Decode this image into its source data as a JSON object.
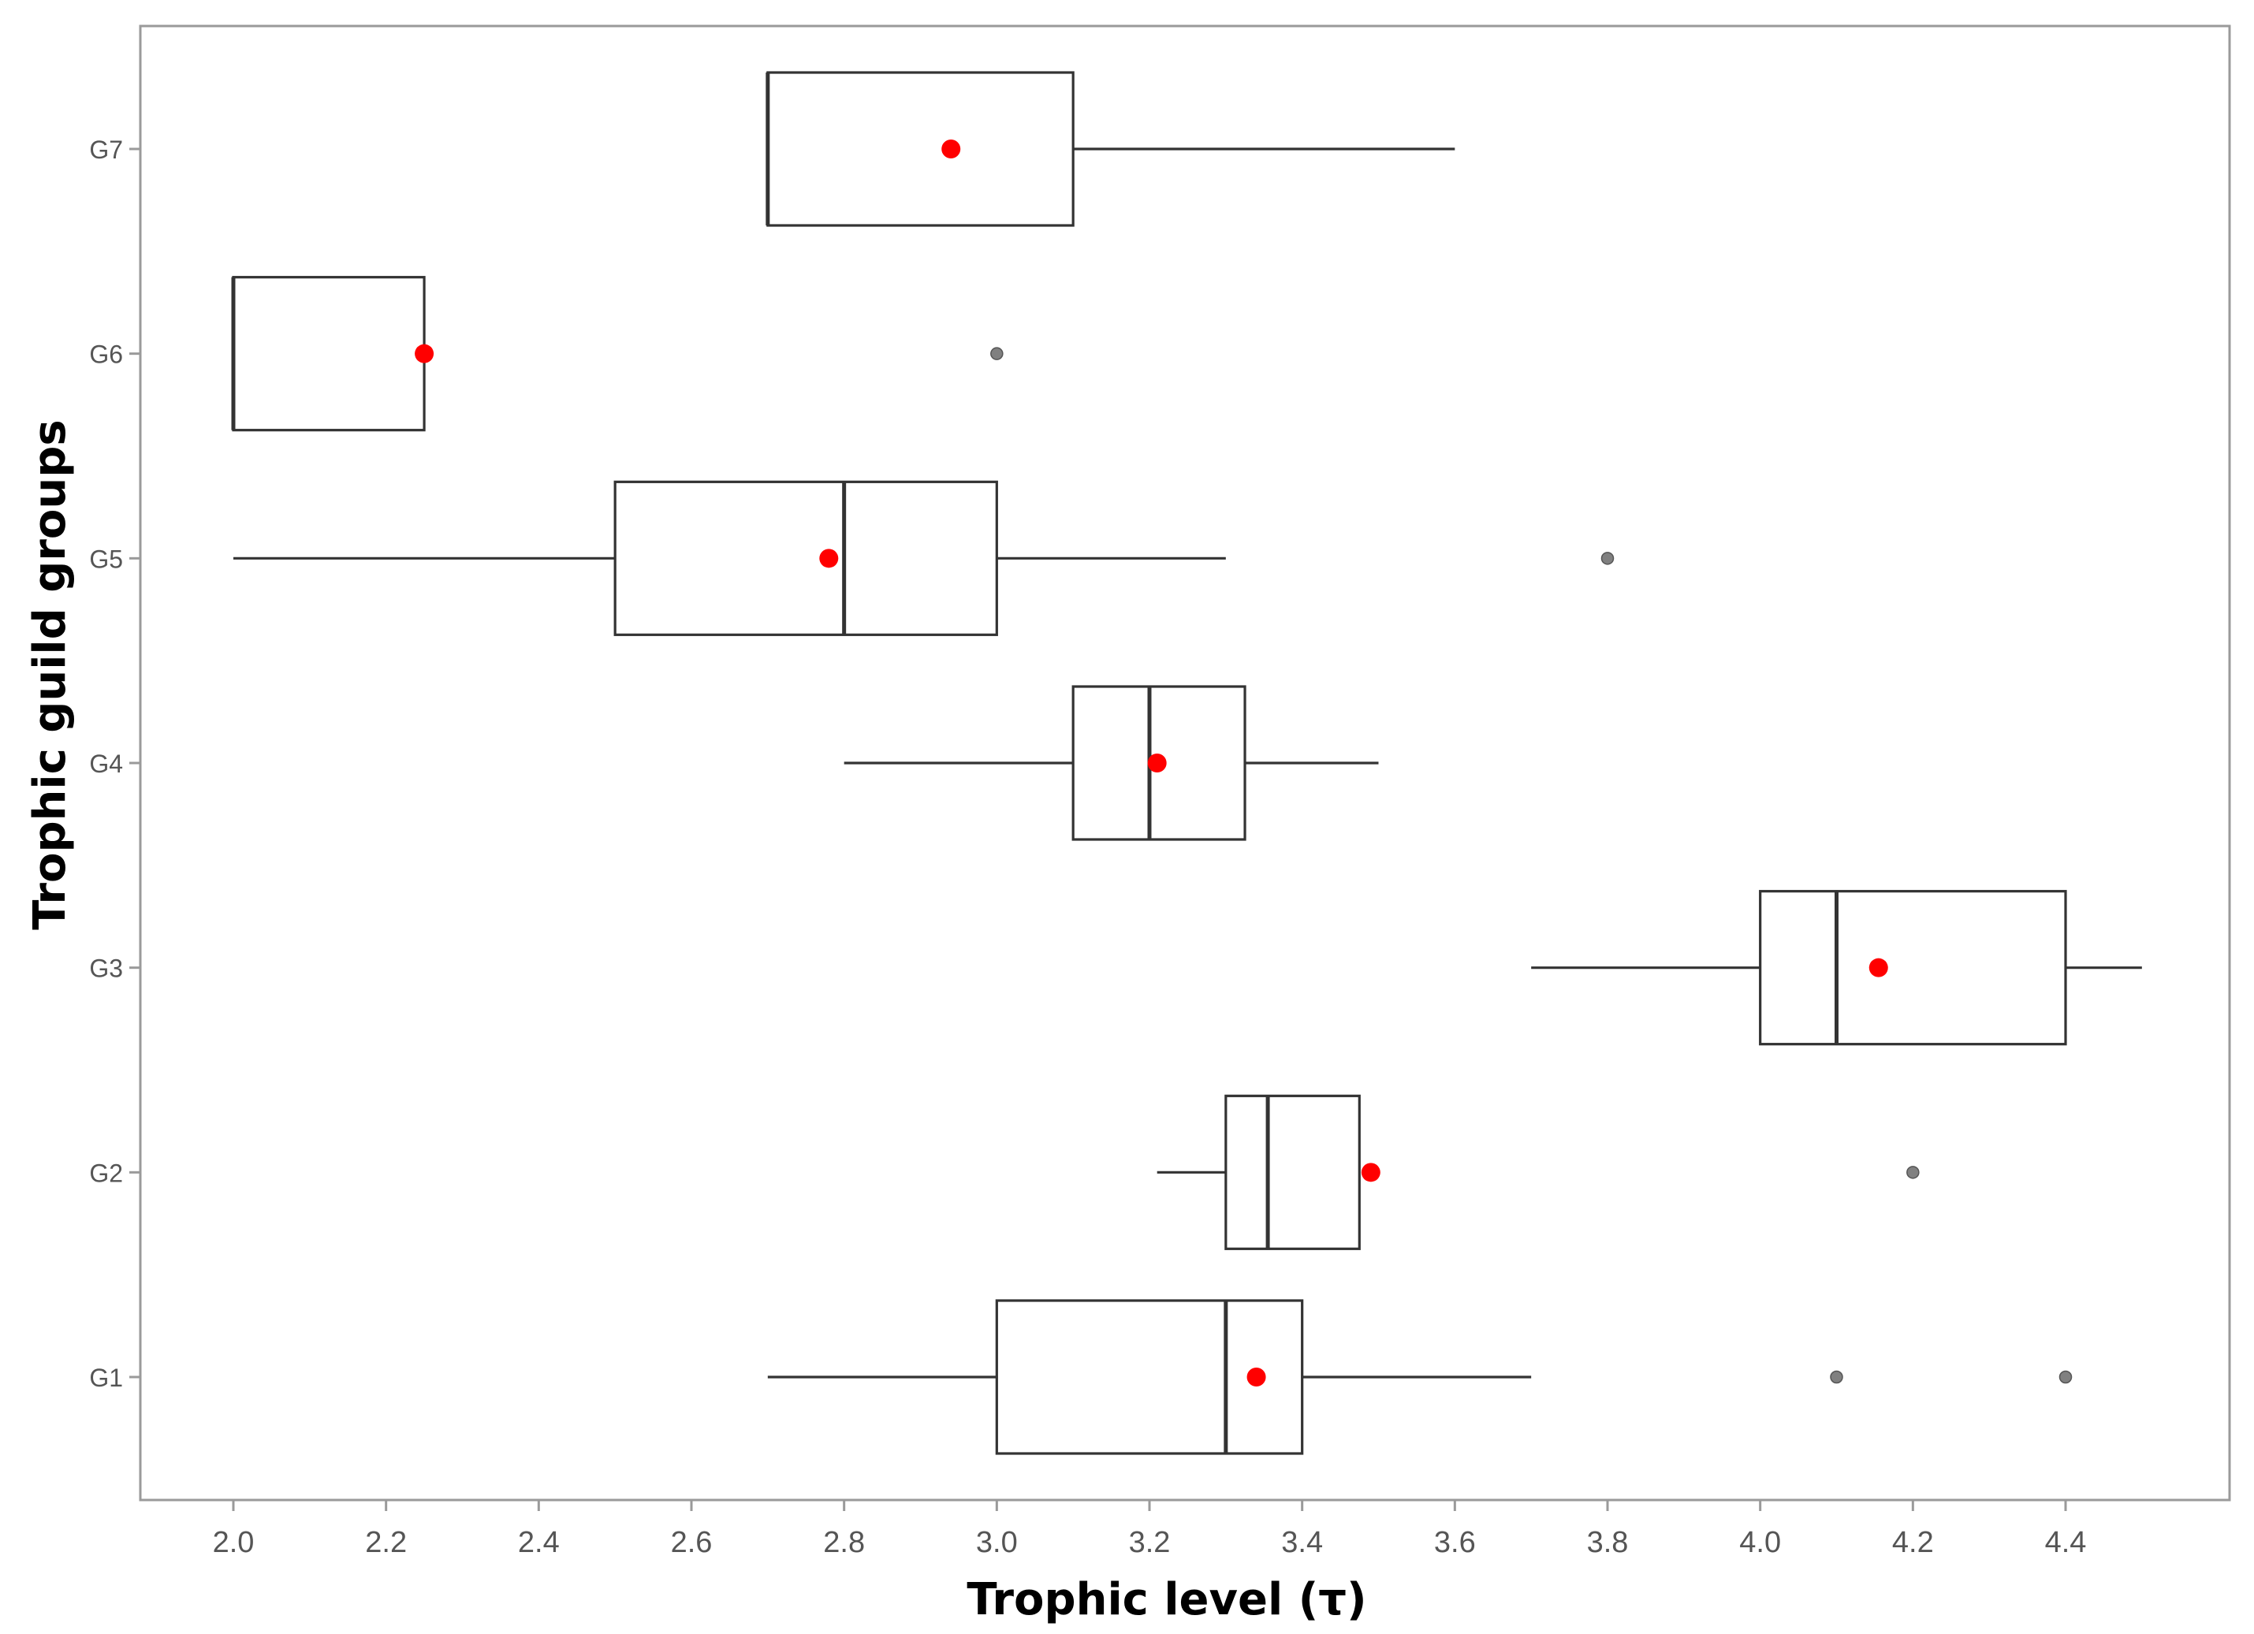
{
  "chart_data": {
    "type": "boxplot",
    "orientation": "horizontal",
    "title": "",
    "xlabel": "Trophic level (τ)",
    "ylabel": "Trophic guild groups",
    "xlim": [
      1.88,
      4.72
    ],
    "x_ticks": [
      "2.0",
      "2.2",
      "2.4",
      "2.6",
      "2.8",
      "3.0",
      "3.2",
      "3.4",
      "3.6",
      "3.8",
      "4.0",
      "4.2",
      "4.4"
    ],
    "grid": false,
    "categories": [
      "G1",
      "G2",
      "G3",
      "G4",
      "G5",
      "G6",
      "G7"
    ],
    "series": [
      {
        "group": "G1",
        "whisker_low": 2.7,
        "q1": 3.0,
        "median": 3.3,
        "q3": 3.4,
        "whisker_high": 3.7,
        "mean": 3.34,
        "outliers": [
          4.1,
          4.4
        ]
      },
      {
        "group": "G2",
        "whisker_low": 3.21,
        "q1": 3.3,
        "median": 3.355,
        "q3": 3.475,
        "whisker_high": 3.475,
        "mean": 3.49,
        "outliers": [
          4.2
        ]
      },
      {
        "group": "G3",
        "whisker_low": 3.7,
        "q1": 4.0,
        "median": 4.1,
        "q3": 4.4,
        "whisker_high": 4.5,
        "mean": 4.155,
        "outliers": []
      },
      {
        "group": "G4",
        "whisker_low": 2.8,
        "q1": 3.1,
        "median": 3.2,
        "q3": 3.325,
        "whisker_high": 3.5,
        "mean": 3.21,
        "outliers": []
      },
      {
        "group": "G5",
        "whisker_low": 2.0,
        "q1": 2.5,
        "median": 2.8,
        "q3": 3.0,
        "whisker_high": 3.3,
        "mean": 2.78,
        "outliers": [
          3.8
        ]
      },
      {
        "group": "G6",
        "whisker_low": 2.0,
        "q1": 2.0,
        "median": 2.0,
        "q3": 2.25,
        "whisker_high": 2.25,
        "mean": 2.25,
        "outliers": [
          3.0
        ]
      },
      {
        "group": "G7",
        "whisker_low": 2.7,
        "q1": 2.7,
        "median": 2.7,
        "q3": 3.1,
        "whisker_high": 3.6,
        "mean": 2.94,
        "outliers": []
      }
    ],
    "colors": {
      "box_stroke": "#333333",
      "mean_point": "#ff0000",
      "outlier": "#808080",
      "panel_border": "#9a9a9a",
      "tick_text": "#555555",
      "title_text": "#000000"
    }
  }
}
